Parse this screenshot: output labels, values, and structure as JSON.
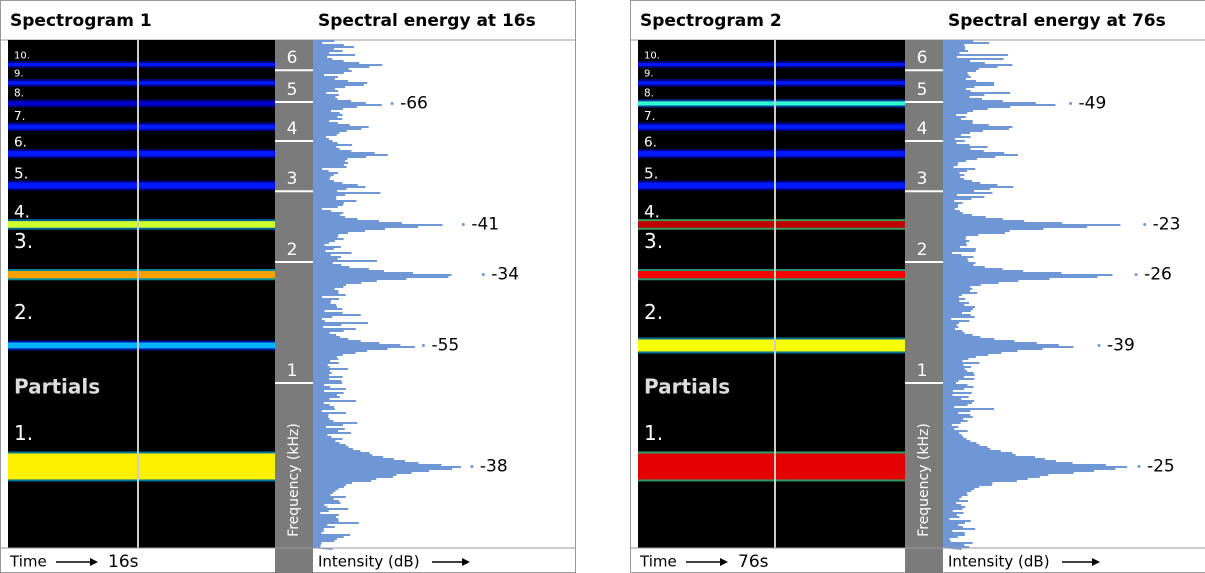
{
  "panels": [
    {
      "spectrogram_title": "Spectrogram 1",
      "energy_title": "Spectral energy at 16s",
      "partials_label": "Partials",
      "partial_labels": [
        "1.",
        "2.",
        "3.",
        "4.",
        "5.",
        "6.",
        "7.",
        "8.",
        "9.",
        "10."
      ],
      "freq_ticks": [
        1,
        2,
        3,
        4,
        5,
        6
      ],
      "freq_axis_label": "Frequency (kHz)",
      "time_label": "Time",
      "time_value": "16s",
      "intensity_label": "Intensity (dB)",
      "peaks": [
        -38,
        -55,
        -34,
        -41,
        -66
      ]
    },
    {
      "spectrogram_title": "Spectrogram 2",
      "energy_title": "Spectral energy at 76s",
      "partials_label": "Partials",
      "partial_labels": [
        "1.",
        "2.",
        "3.",
        "4.",
        "5.",
        "6.",
        "7.",
        "8.",
        "9.",
        "10."
      ],
      "freq_ticks": [
        1,
        2,
        3,
        4,
        5,
        6
      ],
      "freq_axis_label": "Frequency (kHz)",
      "time_label": "Time",
      "time_value": "76s",
      "intensity_label": "Intensity (dB)",
      "peaks": [
        -25,
        -39,
        -26,
        -23,
        -49
      ]
    }
  ]
}
